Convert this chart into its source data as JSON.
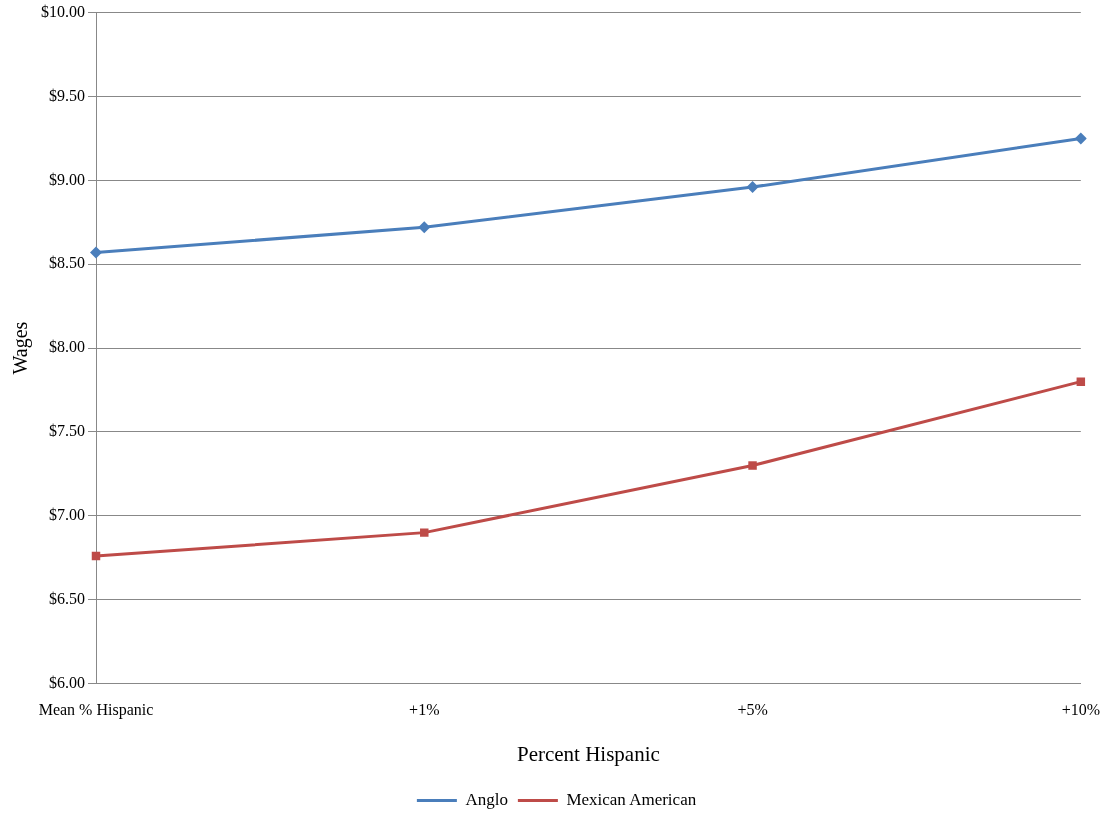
{
  "chart_data": {
    "type": "line",
    "xlabel": "Percent Hispanic",
    "ylabel": "Wages",
    "categories": [
      "Mean % Hispanic",
      "+1%",
      "+5%",
      "+10%"
    ],
    "series": [
      {
        "name": "Anglo",
        "color": "#4a7ebb",
        "marker": "diamond",
        "values": [
          8.57,
          8.72,
          8.96,
          9.25
        ]
      },
      {
        "name": "Mexican American",
        "color": "#be4b48",
        "marker": "square",
        "values": [
          6.76,
          6.9,
          7.3,
          7.8
        ]
      }
    ],
    "ylim": [
      6,
      10
    ],
    "yticks": [
      {
        "value": 6,
        "label": "$6.00"
      },
      {
        "value": 6.5,
        "label": "$6.50"
      },
      {
        "value": 7,
        "label": "$7.00"
      },
      {
        "value": 7.5,
        "label": "$7.50"
      },
      {
        "value": 8,
        "label": "$8.00"
      },
      {
        "value": 8.5,
        "label": "$8.50"
      },
      {
        "value": 9,
        "label": "$9.00"
      },
      {
        "value": 9.5,
        "label": "$9.50"
      },
      {
        "value": 10,
        "label": "$10.00"
      }
    ],
    "grid": "y",
    "legend": "bottom",
    "line_style": "solid"
  }
}
